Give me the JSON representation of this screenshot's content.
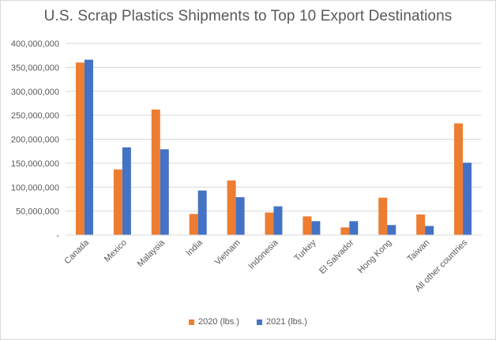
{
  "chart_data": {
    "type": "bar",
    "title": "U.S. Scrap Plastics Shipments to Top 10 Export Destinations",
    "xlabel": "",
    "ylabel": "",
    "ylim": [
      0,
      400000000
    ],
    "yticks": [
      0,
      50000000,
      100000000,
      150000000,
      200000000,
      250000000,
      300000000,
      350000000,
      400000000
    ],
    "ytick_labels": [
      "-",
      "50,000,000",
      "100,000,000",
      "150,000,000",
      "200,000,000",
      "250,000,000",
      "300,000,000",
      "350,000,000",
      "400,000,000"
    ],
    "categories": [
      "Canada",
      "Mexico",
      "Malaysia",
      "India",
      "Vietnam",
      "Indonesia",
      "Turkey",
      "El Salvador",
      "Hong Kong",
      "Taiwan",
      "All other countries"
    ],
    "series": [
      {
        "name": "2020 (lbs.)",
        "color": "#ED7D31",
        "values": [
          360000000,
          137000000,
          262000000,
          44000000,
          114000000,
          47000000,
          39000000,
          16000000,
          78000000,
          43000000,
          233000000
        ]
      },
      {
        "name": "2021 (lbs.)",
        "color": "#4472C4",
        "values": [
          366000000,
          183000000,
          179000000,
          93000000,
          79000000,
          60000000,
          29000000,
          29000000,
          21000000,
          19000000,
          151000000
        ]
      }
    ],
    "grid": true,
    "legend": "bottom"
  }
}
